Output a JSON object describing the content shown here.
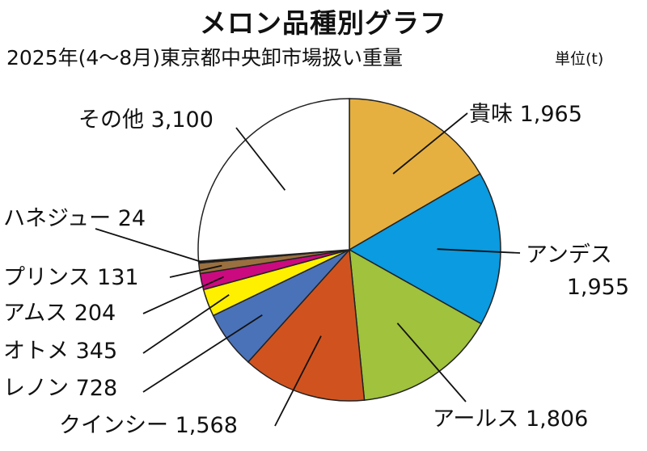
{
  "title": "メロン品種別グラフ",
  "subtitle": "2025年(4〜8月)東京都中央卸市場扱い重量",
  "unit": "単位(t)",
  "chart_data": {
    "type": "pie",
    "start": "12 o'clock, clockwise",
    "slices": [
      {
        "name": "貴味",
        "value": 1965,
        "value_label": "1,965",
        "color": "#e6b040"
      },
      {
        "name": "アンデス",
        "value": 1955,
        "value_label": "1,955",
        "color": "#0a9be0"
      },
      {
        "name": "アールス",
        "value": 1806,
        "value_label": "1,806",
        "color": "#a0c23c"
      },
      {
        "name": "クインシー",
        "value": 1568,
        "value_label": "1,568",
        "color": "#d0531f"
      },
      {
        "name": "レノン",
        "value": 728,
        "value_label": "728",
        "color": "#4a72b8"
      },
      {
        "name": "オトメ",
        "value": 345,
        "value_label": "345",
        "color": "#fff000"
      },
      {
        "name": "アムス",
        "value": 204,
        "value_label": "204",
        "color": "#cc0a80"
      },
      {
        "name": "プリンス",
        "value": 131,
        "value_label": "131",
        "color": "#9a7040"
      },
      {
        "name": "ハネジュー",
        "value": 24,
        "value_label": "24",
        "color": "#111111"
      },
      {
        "name": "その他",
        "value": 3100,
        "value_label": "3,100",
        "color": "#ffffff"
      }
    ]
  }
}
